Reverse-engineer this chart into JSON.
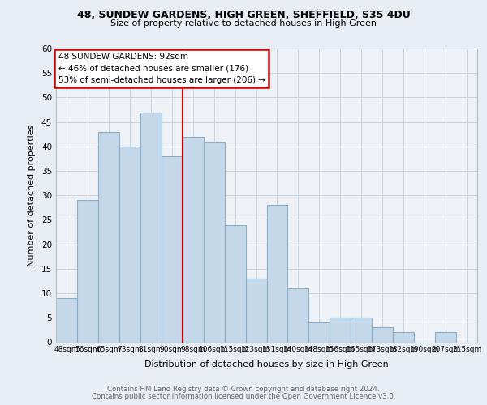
{
  "title1": "48, SUNDEW GARDENS, HIGH GREEN, SHEFFIELD, S35 4DU",
  "title2": "Size of property relative to detached houses in High Green",
  "xlabel": "Distribution of detached houses by size in High Green",
  "ylabel": "Number of detached properties",
  "categories": [
    "48sqm",
    "56sqm",
    "65sqm",
    "73sqm",
    "81sqm",
    "90sqm",
    "98sqm",
    "106sqm",
    "115sqm",
    "123sqm",
    "131sqm",
    "140sqm",
    "148sqm",
    "156sqm",
    "165sqm",
    "173sqm",
    "182sqm",
    "190sqm",
    "207sqm",
    "215sqm"
  ],
  "values": [
    9,
    29,
    43,
    40,
    47,
    38,
    42,
    41,
    24,
    13,
    28,
    11,
    4,
    5,
    5,
    3,
    2,
    0,
    2,
    0
  ],
  "bar_color": "#c5d8ea",
  "bar_edge_color": "#8aaec8",
  "vline_color": "#cc0000",
  "vline_pos": 5.5,
  "annotation_text_line1": "48 SUNDEW GARDENS: 92sqm",
  "annotation_text_line2": "← 46% of detached houses are smaller (176)",
  "annotation_text_line3": "53% of semi-detached houses are larger (206) →",
  "annotation_box_color": "#cc0000",
  "ylim": [
    0,
    60
  ],
  "yticks": [
    0,
    5,
    10,
    15,
    20,
    25,
    30,
    35,
    40,
    45,
    50,
    55,
    60
  ],
  "footer1": "Contains HM Land Registry data © Crown copyright and database right 2024.",
  "footer2": "Contains public sector information licensed under the Open Government Licence v3.0.",
  "bg_color": "#e8eef4",
  "plot_bg_color": "#eef2f7",
  "grid_color": "#c8d4de"
}
